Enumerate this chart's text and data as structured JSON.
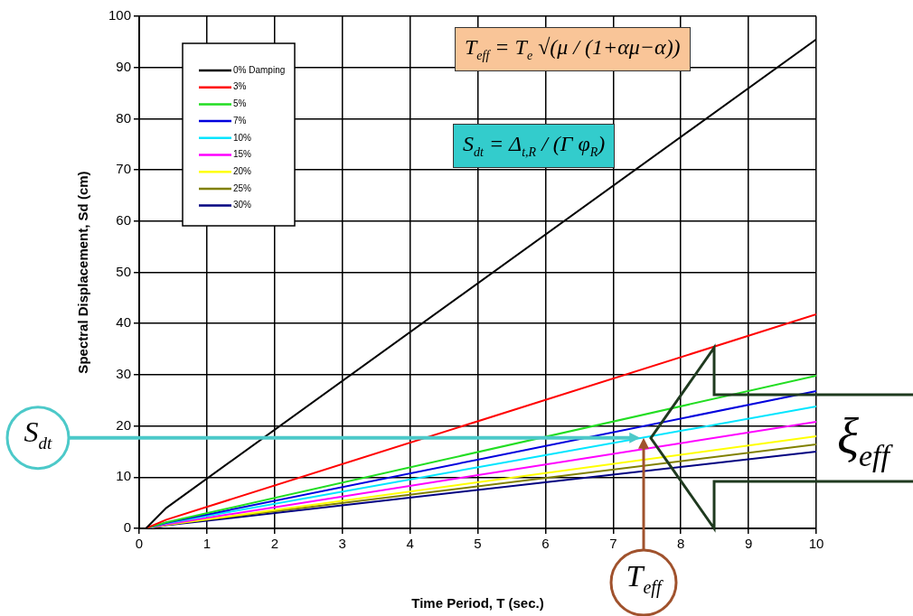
{
  "chart_data": {
    "type": "line",
    "xlabel": "Time Period, T (sec.)",
    "ylabel": "Spectral Displacement, Sd (cm)",
    "x": [
      0,
      0.1,
      0.4,
      10
    ],
    "series": [
      {
        "name": "0% Damping",
        "color": "#000000",
        "values": [
          0,
          0,
          4,
          95.5
        ]
      },
      {
        "name": "3%",
        "color": "#ff0000",
        "values": [
          0,
          0,
          1.7,
          41.8
        ]
      },
      {
        "name": "5%",
        "color": "#22dd22",
        "values": [
          0,
          0,
          1.2,
          29.8
        ]
      },
      {
        "name": "7%",
        "color": "#0000dd",
        "values": [
          0,
          0,
          1.1,
          26.8
        ]
      },
      {
        "name": "10%",
        "color": "#00e5ff",
        "values": [
          0,
          0,
          1,
          23.8
        ]
      },
      {
        "name": "15%",
        "color": "#ff00ff",
        "values": [
          0,
          0,
          0.8,
          20.8
        ]
      },
      {
        "name": "20%",
        "color": "#ffff00",
        "values": [
          0,
          0,
          0.7,
          18
        ]
      },
      {
        "name": "25%",
        "color": "#808000",
        "values": [
          0,
          0,
          0.7,
          16.4
        ]
      },
      {
        "name": "30%",
        "color": "#000080",
        "values": [
          0,
          0,
          0.6,
          15
        ]
      }
    ],
    "xlim": [
      0,
      10
    ],
    "xticks": [
      0,
      1,
      2,
      3,
      4,
      5,
      6,
      7,
      8,
      9,
      10
    ],
    "ylim": [
      0,
      100
    ],
    "yticks": [
      0,
      10,
      20,
      30,
      40,
      50,
      60,
      70,
      80,
      90,
      100
    ],
    "grid": true,
    "legend": "top left",
    "marker": "none",
    "line_style": "solid",
    "annotations": [
      "T$_{eff}$ = T$_{e}$ √(μ / (1+αμ−α))",
      "S$_{dt}$ = Δ$_{t,R}$ / (Γ φ$_{R}$)",
      {
        "text": "S$_{dt}$",
        "x": 7.4,
        "y": 17.7
      },
      {
        "text": "T$_{eff}$",
        "x": 7.45,
        "y": 17.7
      },
      "ξ$_{eff}$"
    ]
  }
}
